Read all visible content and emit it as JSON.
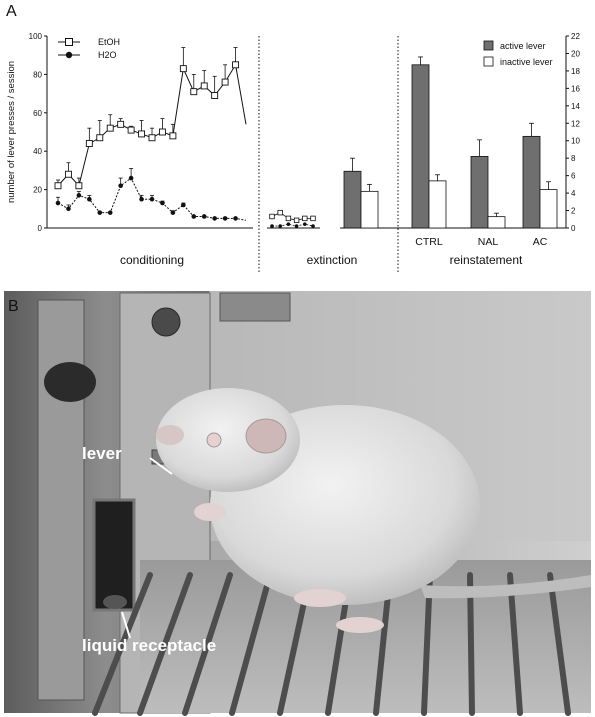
{
  "panels": {
    "a": "A",
    "b": "B"
  },
  "chart_data": [
    {
      "type": "line",
      "ylabel": "number of lever presses / session",
      "ylim": [
        0,
        100
      ],
      "yticks": [
        0,
        20,
        40,
        60,
        80,
        100
      ],
      "x": [
        1,
        2,
        3,
        4,
        5,
        6,
        7,
        8,
        9,
        10,
        11,
        12,
        13,
        14,
        15,
        16,
        17,
        18,
        19
      ],
      "sections": [
        "conditioning"
      ],
      "series": [
        {
          "name": "EtOH",
          "marker": "open-square",
          "values": [
            22,
            28,
            22,
            44,
            47,
            52,
            54,
            51,
            49,
            47,
            50,
            48,
            83,
            71,
            74,
            69,
            76,
            85,
            54
          ],
          "errors": [
            3,
            6,
            4,
            8,
            9,
            7,
            3,
            2,
            7,
            5,
            7,
            6,
            11,
            9,
            8,
            10,
            9,
            9,
            0
          ]
        },
        {
          "name": "H2O",
          "marker": "filled-circle",
          "values": [
            13,
            10,
            17,
            15,
            8,
            8,
            22,
            26,
            15,
            15,
            13,
            8,
            12,
            6,
            6,
            5,
            5,
            5,
            4
          ],
          "errors": [
            3,
            2,
            2,
            2,
            0,
            0,
            4,
            5,
            2,
            2,
            1,
            1,
            1,
            0,
            0,
            0,
            0,
            0,
            0
          ]
        }
      ]
    },
    {
      "type": "line",
      "sections": [
        "extinction"
      ],
      "x": [
        1,
        2,
        3,
        4,
        5,
        6
      ],
      "series": [
        {
          "name": "EtOH",
          "values": [
            6,
            8,
            5,
            4,
            5,
            5
          ]
        },
        {
          "name": "H2O",
          "values": [
            1,
            1,
            2,
            1,
            2,
            1
          ]
        }
      ]
    },
    {
      "type": "bar",
      "y2lim": [
        0,
        22
      ],
      "y2ticks": [
        0,
        2,
        4,
        6,
        8,
        10,
        12,
        14,
        16,
        18,
        20,
        22
      ],
      "legend": {
        "active": "active lever",
        "inactive": "inactive lever"
      },
      "sections": [
        "reinstatement"
      ],
      "groups": [
        {
          "label": "",
          "active": 6.5,
          "active_err": 1.5,
          "inactive": 4.2,
          "inactive_err": 0.8
        },
        {
          "label": "CTRL",
          "active": 18.7,
          "active_err": 0.9,
          "inactive": 5.4,
          "inactive_err": 0.7
        },
        {
          "label": "NAL",
          "active": 8.2,
          "active_err": 1.9,
          "inactive": 1.3,
          "inactive_err": 0.4
        },
        {
          "label": "AC",
          "active": 10.5,
          "active_err": 1.5,
          "inactive": 4.4,
          "inactive_err": 0.9
        }
      ]
    }
  ],
  "photo": {
    "labels": {
      "lever": "lever",
      "receptacle": "liquid receptacle"
    }
  },
  "colors": {
    "active_bar": "#6f6f6f",
    "inactive_bar": "#ffffff",
    "ink": "#111111"
  }
}
